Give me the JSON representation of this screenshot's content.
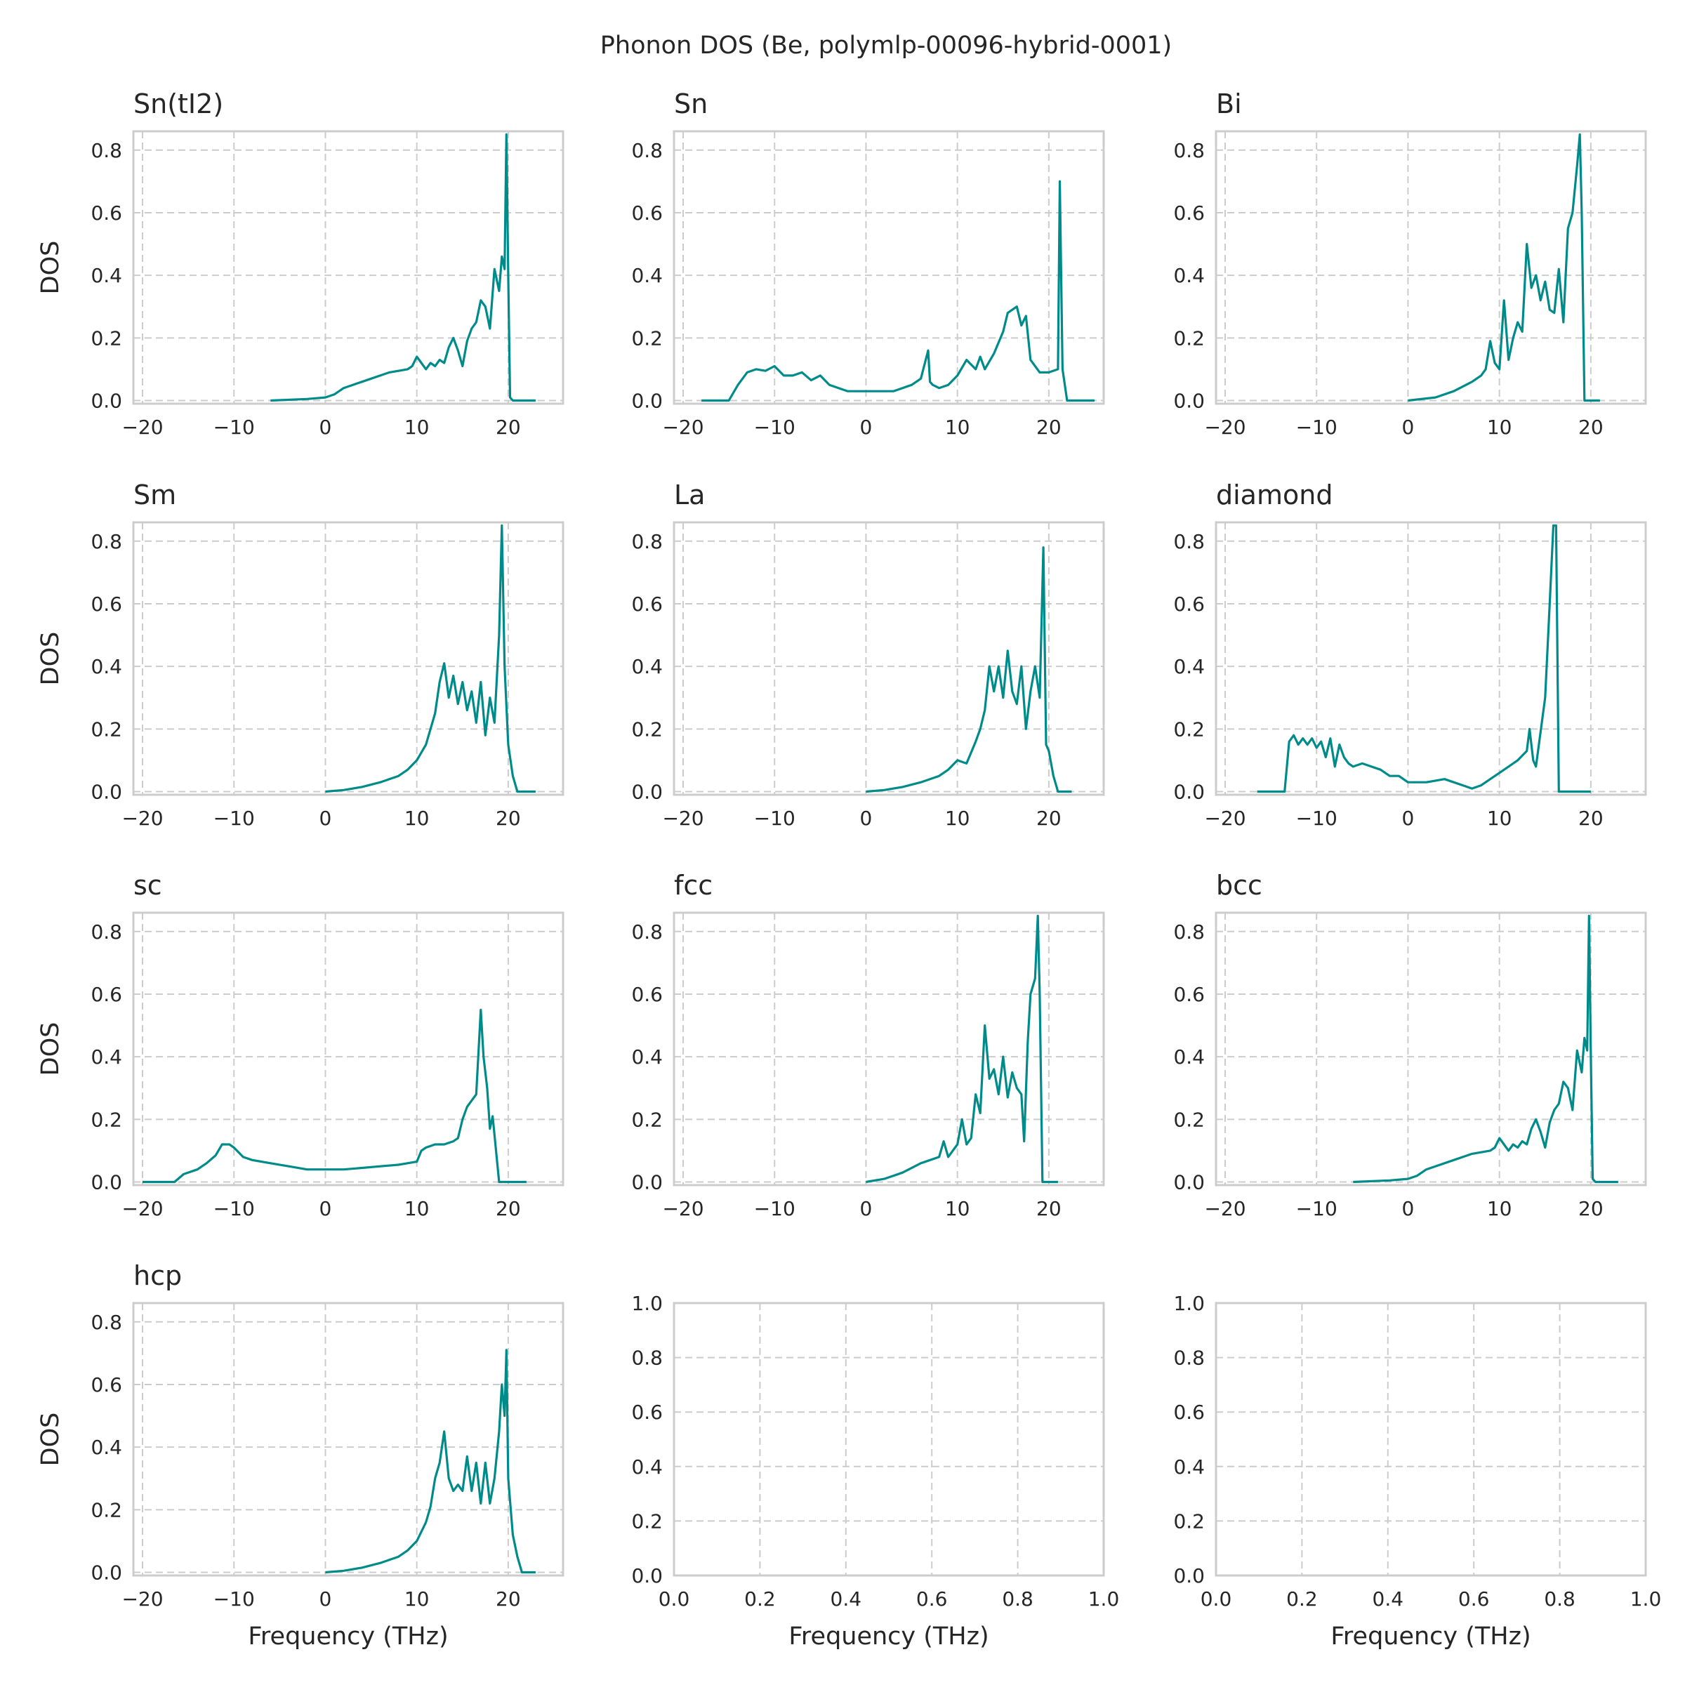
{
  "figure": {
    "title": "Phonon DOS (Be, polymlp-00096-hybrid-0001)",
    "xlabel": "Frequency (THz)",
    "ylabel": "DOS",
    "line_color": "#008b8b",
    "grid_color": "#cccccc",
    "frame_color": "#cccccc"
  },
  "chart_data": [
    {
      "type": "line",
      "title": "Sn(tI2)",
      "xlabel": "",
      "ylabel": "DOS",
      "xlim": [
        -21,
        26
      ],
      "ylim": [
        -0.01,
        0.86
      ],
      "xticks": [
        -20,
        -10,
        0,
        10,
        20
      ],
      "yticks": [
        0.0,
        0.2,
        0.4,
        0.6,
        0.8
      ],
      "grid": true,
      "series": [
        {
          "x": [
            -6,
            -2,
            0,
            1,
            2,
            3,
            4,
            5,
            6,
            7,
            8,
            9,
            9.5,
            10,
            10.5,
            11,
            11.5,
            12,
            12.5,
            13,
            13.5,
            14,
            14.5,
            15,
            15.5,
            16,
            16.5,
            17,
            17.5,
            18,
            18.5,
            19,
            19.3,
            19.6,
            19.8,
            20,
            20.2,
            20.5,
            23
          ],
          "y": [
            0.0,
            0.005,
            0.01,
            0.02,
            0.04,
            0.05,
            0.06,
            0.07,
            0.08,
            0.09,
            0.095,
            0.1,
            0.11,
            0.14,
            0.12,
            0.1,
            0.12,
            0.11,
            0.13,
            0.12,
            0.17,
            0.2,
            0.16,
            0.11,
            0.19,
            0.23,
            0.25,
            0.32,
            0.3,
            0.23,
            0.42,
            0.35,
            0.46,
            0.42,
            0.85,
            0.4,
            0.01,
            0.0,
            0.0
          ]
        }
      ]
    },
    {
      "type": "line",
      "title": "Sn",
      "xlabel": "",
      "ylabel": "",
      "xlim": [
        -21,
        26
      ],
      "ylim": [
        -0.01,
        0.86
      ],
      "xticks": [
        -20,
        -10,
        0,
        10,
        20
      ],
      "yticks": [
        0.0,
        0.2,
        0.4,
        0.6,
        0.8
      ],
      "grid": true,
      "series": [
        {
          "x": [
            -18,
            -15,
            -14,
            -13,
            -12,
            -11,
            -10,
            -9,
            -8,
            -7,
            -6,
            -5,
            -4,
            -3,
            -2,
            -1,
            0,
            1,
            2,
            3,
            4,
            5,
            6,
            6.8,
            7,
            7.3,
            8,
            9,
            10,
            11,
            12,
            12.5,
            13,
            14,
            15,
            15.5,
            16,
            16.5,
            17,
            17.5,
            18,
            19,
            20,
            21,
            21.2,
            21.5,
            22,
            25
          ],
          "y": [
            0.0,
            0.0,
            0.05,
            0.09,
            0.1,
            0.095,
            0.11,
            0.08,
            0.08,
            0.09,
            0.065,
            0.08,
            0.05,
            0.04,
            0.03,
            0.03,
            0.03,
            0.03,
            0.03,
            0.03,
            0.04,
            0.05,
            0.07,
            0.16,
            0.06,
            0.05,
            0.04,
            0.05,
            0.08,
            0.13,
            0.1,
            0.14,
            0.1,
            0.15,
            0.22,
            0.28,
            0.29,
            0.3,
            0.24,
            0.27,
            0.13,
            0.09,
            0.09,
            0.1,
            0.7,
            0.1,
            0.0,
            0.0
          ]
        }
      ]
    },
    {
      "type": "line",
      "title": "Bi",
      "xlabel": "",
      "ylabel": "",
      "xlim": [
        -21,
        26
      ],
      "ylim": [
        -0.01,
        0.86
      ],
      "xticks": [
        -20,
        -10,
        0,
        10,
        20
      ],
      "yticks": [
        0.0,
        0.2,
        0.4,
        0.6,
        0.8
      ],
      "grid": true,
      "series": [
        {
          "x": [
            0,
            3,
            5,
            7,
            8,
            8.5,
            9,
            9.5,
            10,
            10.5,
            11,
            11.5,
            12,
            12.5,
            13,
            13.5,
            14,
            14.5,
            15,
            15.5,
            16,
            16.5,
            17,
            17.5,
            18,
            18.5,
            18.8,
            19,
            19.3,
            21
          ],
          "y": [
            0.0,
            0.01,
            0.03,
            0.06,
            0.08,
            0.1,
            0.19,
            0.12,
            0.1,
            0.32,
            0.13,
            0.2,
            0.25,
            0.22,
            0.5,
            0.36,
            0.4,
            0.32,
            0.38,
            0.29,
            0.28,
            0.42,
            0.25,
            0.55,
            0.6,
            0.75,
            0.85,
            0.6,
            0.0,
            0.0
          ]
        }
      ]
    },
    {
      "type": "line",
      "title": "Sm",
      "xlabel": "",
      "ylabel": "DOS",
      "xlim": [
        -21,
        26
      ],
      "ylim": [
        -0.01,
        0.86
      ],
      "xticks": [
        -20,
        -10,
        0,
        10,
        20
      ],
      "yticks": [
        0.0,
        0.2,
        0.4,
        0.6,
        0.8
      ],
      "grid": true,
      "series": [
        {
          "x": [
            0,
            2,
            4,
            6,
            8,
            9,
            10,
            11,
            12,
            12.5,
            13,
            13.5,
            14,
            14.5,
            15,
            15.5,
            16,
            16.5,
            17,
            17.5,
            18,
            18.5,
            19,
            19.3,
            19.6,
            20,
            20.5,
            21,
            23
          ],
          "y": [
            0.0,
            0.005,
            0.015,
            0.03,
            0.05,
            0.07,
            0.1,
            0.15,
            0.25,
            0.35,
            0.41,
            0.3,
            0.37,
            0.28,
            0.35,
            0.26,
            0.32,
            0.22,
            0.35,
            0.18,
            0.3,
            0.22,
            0.5,
            0.85,
            0.4,
            0.15,
            0.05,
            0.0,
            0.0
          ]
        }
      ]
    },
    {
      "type": "line",
      "title": "La",
      "xlabel": "",
      "ylabel": "",
      "xlim": [
        -21,
        26
      ],
      "ylim": [
        -0.01,
        0.86
      ],
      "xticks": [
        -20,
        -10,
        0,
        10,
        20
      ],
      "yticks": [
        0.0,
        0.2,
        0.4,
        0.6,
        0.8
      ],
      "grid": true,
      "series": [
        {
          "x": [
            0,
            2,
            4,
            6,
            8,
            9,
            10,
            11,
            12,
            12.5,
            13,
            13.5,
            14,
            14.5,
            15,
            15.5,
            16,
            16.5,
            17,
            17.5,
            18,
            18.5,
            19,
            19.4,
            19.7,
            20,
            20.5,
            21,
            22.5
          ],
          "y": [
            0.0,
            0.005,
            0.015,
            0.03,
            0.05,
            0.07,
            0.1,
            0.09,
            0.16,
            0.2,
            0.26,
            0.4,
            0.32,
            0.4,
            0.3,
            0.45,
            0.32,
            0.28,
            0.4,
            0.2,
            0.32,
            0.4,
            0.3,
            0.78,
            0.15,
            0.13,
            0.05,
            0.0,
            0.0
          ]
        }
      ]
    },
    {
      "type": "line",
      "title": "diamond",
      "xlabel": "",
      "ylabel": "",
      "xlim": [
        -21,
        26
      ],
      "ylim": [
        -0.01,
        0.86
      ],
      "xticks": [
        -20,
        -10,
        0,
        10,
        20
      ],
      "yticks": [
        0.0,
        0.2,
        0.4,
        0.6,
        0.8
      ],
      "grid": true,
      "series": [
        {
          "x": [
            -16.5,
            -13.5,
            -13,
            -12.5,
            -12,
            -11.5,
            -11,
            -10.5,
            -10,
            -9.5,
            -9,
            -8.5,
            -8,
            -7.5,
            -7,
            -6.5,
            -6,
            -5,
            -4,
            -3,
            -2,
            -1,
            0,
            1,
            2,
            3,
            4,
            5,
            6,
            7,
            8,
            9,
            10,
            11,
            12,
            13,
            13.3,
            13.7,
            14,
            15,
            15.5,
            15.9,
            16.2,
            16.5,
            20
          ],
          "y": [
            0.0,
            0.0,
            0.16,
            0.18,
            0.15,
            0.17,
            0.15,
            0.17,
            0.14,
            0.16,
            0.11,
            0.17,
            0.08,
            0.15,
            0.11,
            0.09,
            0.08,
            0.09,
            0.08,
            0.07,
            0.05,
            0.05,
            0.03,
            0.03,
            0.03,
            0.035,
            0.04,
            0.03,
            0.02,
            0.01,
            0.02,
            0.04,
            0.06,
            0.08,
            0.1,
            0.13,
            0.2,
            0.1,
            0.08,
            0.3,
            0.6,
            0.85,
            0.85,
            0.0,
            0.0
          ]
        }
      ]
    },
    {
      "type": "line",
      "title": "sc",
      "xlabel": "",
      "ylabel": "DOS",
      "xlim": [
        -21,
        26
      ],
      "ylim": [
        -0.01,
        0.86
      ],
      "xticks": [
        -20,
        -10,
        0,
        10,
        20
      ],
      "yticks": [
        0.0,
        0.2,
        0.4,
        0.6,
        0.8
      ],
      "grid": true,
      "series": [
        {
          "x": [
            -20,
            -16.5,
            -15.5,
            -14,
            -13,
            -12,
            -11.3,
            -10.5,
            -10,
            -9,
            -8,
            -6,
            -4,
            -2,
            0,
            2,
            4,
            6,
            8,
            9,
            10,
            10.5,
            11,
            12,
            13,
            14,
            14.5,
            15,
            15.5,
            16,
            16.5,
            17,
            17.3,
            17.7,
            18,
            18.3,
            19,
            22
          ],
          "y": [
            0.0,
            0.0,
            0.025,
            0.04,
            0.06,
            0.085,
            0.12,
            0.12,
            0.11,
            0.08,
            0.07,
            0.06,
            0.05,
            0.04,
            0.04,
            0.04,
            0.045,
            0.05,
            0.055,
            0.06,
            0.065,
            0.1,
            0.11,
            0.12,
            0.12,
            0.13,
            0.14,
            0.2,
            0.24,
            0.26,
            0.28,
            0.55,
            0.4,
            0.3,
            0.17,
            0.21,
            0.0,
            0.0
          ]
        }
      ]
    },
    {
      "type": "line",
      "title": "fcc",
      "xlabel": "",
      "ylabel": "",
      "xlim": [
        -21,
        26
      ],
      "ylim": [
        -0.01,
        0.86
      ],
      "xticks": [
        -20,
        -10,
        0,
        10,
        20
      ],
      "yticks": [
        0.0,
        0.2,
        0.4,
        0.6,
        0.8
      ],
      "grid": true,
      "series": [
        {
          "x": [
            0,
            2,
            4,
            6,
            8,
            8.5,
            9,
            9.5,
            10,
            10.5,
            11,
            11.5,
            12,
            12.5,
            13,
            13.5,
            14,
            14.5,
            15,
            15.5,
            16,
            16.5,
            17,
            17.3,
            17.7,
            18,
            18.5,
            18.8,
            19,
            19.3,
            21
          ],
          "y": [
            0.0,
            0.01,
            0.03,
            0.06,
            0.08,
            0.13,
            0.08,
            0.1,
            0.12,
            0.2,
            0.12,
            0.14,
            0.28,
            0.22,
            0.5,
            0.33,
            0.36,
            0.28,
            0.4,
            0.27,
            0.35,
            0.3,
            0.28,
            0.13,
            0.45,
            0.6,
            0.65,
            0.85,
            0.6,
            0.0,
            0.0
          ]
        }
      ]
    },
    {
      "type": "line",
      "title": "bcc",
      "xlabel": "",
      "ylabel": "",
      "xlim": [
        -21,
        26
      ],
      "ylim": [
        -0.01,
        0.86
      ],
      "xticks": [
        -20,
        -10,
        0,
        10,
        20
      ],
      "yticks": [
        0.0,
        0.2,
        0.4,
        0.6,
        0.8
      ],
      "grid": true,
      "series": [
        {
          "x": [
            -6,
            -2,
            0,
            1,
            2,
            3,
            4,
            5,
            6,
            7,
            8,
            9,
            9.5,
            10,
            10.5,
            11,
            11.5,
            12,
            12.5,
            13,
            13.5,
            14,
            14.5,
            15,
            15.5,
            16,
            16.5,
            17,
            17.5,
            18,
            18.5,
            19,
            19.3,
            19.6,
            19.8,
            20,
            20.2,
            20.5,
            23
          ],
          "y": [
            0.0,
            0.005,
            0.01,
            0.02,
            0.04,
            0.05,
            0.06,
            0.07,
            0.08,
            0.09,
            0.095,
            0.1,
            0.11,
            0.14,
            0.12,
            0.1,
            0.12,
            0.11,
            0.13,
            0.12,
            0.17,
            0.2,
            0.16,
            0.11,
            0.19,
            0.23,
            0.25,
            0.32,
            0.3,
            0.23,
            0.42,
            0.35,
            0.46,
            0.42,
            0.85,
            0.4,
            0.01,
            0.0,
            0.0
          ]
        }
      ]
    },
    {
      "type": "line",
      "title": "hcp",
      "xlabel": "Frequency (THz)",
      "ylabel": "DOS",
      "xlim": [
        -21,
        26
      ],
      "ylim": [
        -0.01,
        0.86
      ],
      "xticks": [
        -20,
        -10,
        0,
        10,
        20
      ],
      "yticks": [
        0.0,
        0.2,
        0.4,
        0.6,
        0.8
      ],
      "grid": true,
      "series": [
        {
          "x": [
            0,
            2,
            4,
            6,
            8,
            9,
            10,
            10.5,
            11,
            11.5,
            12,
            12.5,
            13,
            13.5,
            14,
            14.5,
            15,
            15.5,
            16,
            16.5,
            17,
            17.5,
            18,
            18.5,
            19,
            19.3,
            19.6,
            19.8,
            20,
            20.5,
            21,
            21.5,
            23
          ],
          "y": [
            0.0,
            0.005,
            0.015,
            0.03,
            0.05,
            0.07,
            0.1,
            0.13,
            0.16,
            0.21,
            0.3,
            0.35,
            0.45,
            0.3,
            0.26,
            0.28,
            0.26,
            0.37,
            0.26,
            0.35,
            0.22,
            0.35,
            0.22,
            0.3,
            0.45,
            0.6,
            0.5,
            0.71,
            0.3,
            0.12,
            0.05,
            0.0,
            0.0
          ]
        }
      ]
    },
    {
      "type": "line",
      "title": "",
      "xlabel": "Frequency (THz)",
      "ylabel": "",
      "xlim": [
        0,
        1
      ],
      "ylim": [
        0,
        1
      ],
      "xticks": [
        0.0,
        0.2,
        0.4,
        0.6,
        0.8,
        1.0
      ],
      "yticks": [
        0.0,
        0.2,
        0.4,
        0.6,
        0.8,
        1.0
      ],
      "grid": true,
      "series": []
    },
    {
      "type": "line",
      "title": "",
      "xlabel": "Frequency (THz)",
      "ylabel": "",
      "xlim": [
        0,
        1
      ],
      "ylim": [
        0,
        1
      ],
      "xticks": [
        0.0,
        0.2,
        0.4,
        0.6,
        0.8,
        1.0
      ],
      "yticks": [
        0.0,
        0.2,
        0.4,
        0.6,
        0.8,
        1.0
      ],
      "grid": true,
      "series": []
    }
  ]
}
